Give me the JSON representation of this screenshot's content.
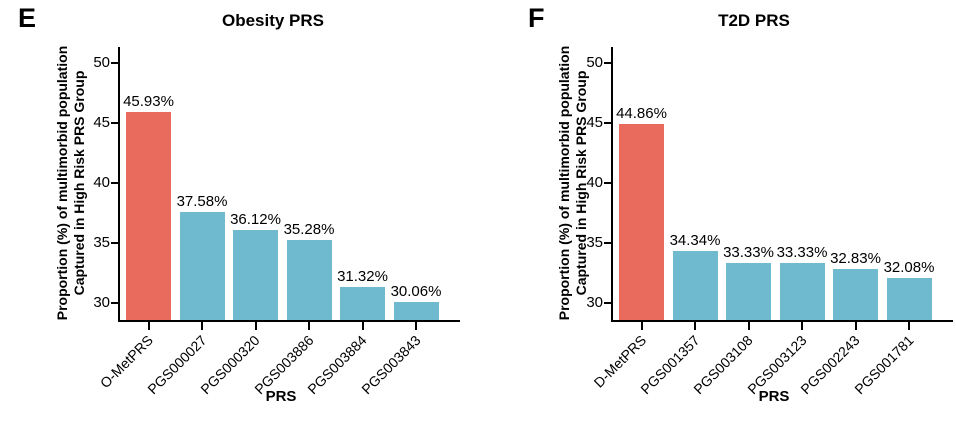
{
  "figure": {
    "background": "#ffffff",
    "text_color": "#000000",
    "axis_color": "#000000",
    "highlight_bar_color": "#E96B5E",
    "default_bar_color": "#70BACF"
  },
  "chart_data": [
    {
      "type": "bar",
      "panel_letter": "E",
      "title": "Obesity PRS",
      "xlabel": "PRS",
      "ylabel_line1": "Proportion (%) of multimorbid population",
      "ylabel_line2": "Captured in High Risk PRS Group",
      "categories": [
        "O-MetPRS",
        "PGS000027",
        "PGS000320",
        "PGS003886",
        "PGS003884",
        "PGS003843"
      ],
      "values": [
        45.93,
        37.58,
        36.12,
        35.28,
        31.32,
        30.06
      ],
      "value_labels": [
        "45.93%",
        "37.58%",
        "36.12%",
        "35.28%",
        "31.32%",
        "30.06%"
      ],
      "bar_colors": [
        "#E96B5E",
        "#70BACF",
        "#70BACF",
        "#70BACF",
        "#70BACF",
        "#70BACF"
      ],
      "yticks": [
        30,
        35,
        40,
        45,
        50
      ],
      "ylim": [
        28.6,
        51.3
      ],
      "grid": false,
      "legend_position": "none"
    },
    {
      "type": "bar",
      "panel_letter": "F",
      "title": "T2D PRS",
      "xlabel": "PRS",
      "ylabel_line1": "Proportion (%) of multimorbid population",
      "ylabel_line2": "Captured in High Risk PRS Group",
      "categories": [
        "D-MetPRS",
        "PGS001357",
        "PGS003108",
        "PGS003123",
        "PGS002243",
        "PGS001781"
      ],
      "values": [
        44.86,
        34.34,
        33.33,
        33.33,
        32.83,
        32.08
      ],
      "value_labels": [
        "44.86%",
        "34.34%",
        "33.33%",
        "33.33%",
        "32.83%",
        "32.08%"
      ],
      "bar_colors": [
        "#E96B5E",
        "#70BACF",
        "#70BACF",
        "#70BACF",
        "#70BACF",
        "#70BACF"
      ],
      "yticks": [
        30,
        35,
        40,
        45,
        50
      ],
      "ylim": [
        28.6,
        51.3
      ],
      "grid": false,
      "legend_position": "none"
    }
  ]
}
